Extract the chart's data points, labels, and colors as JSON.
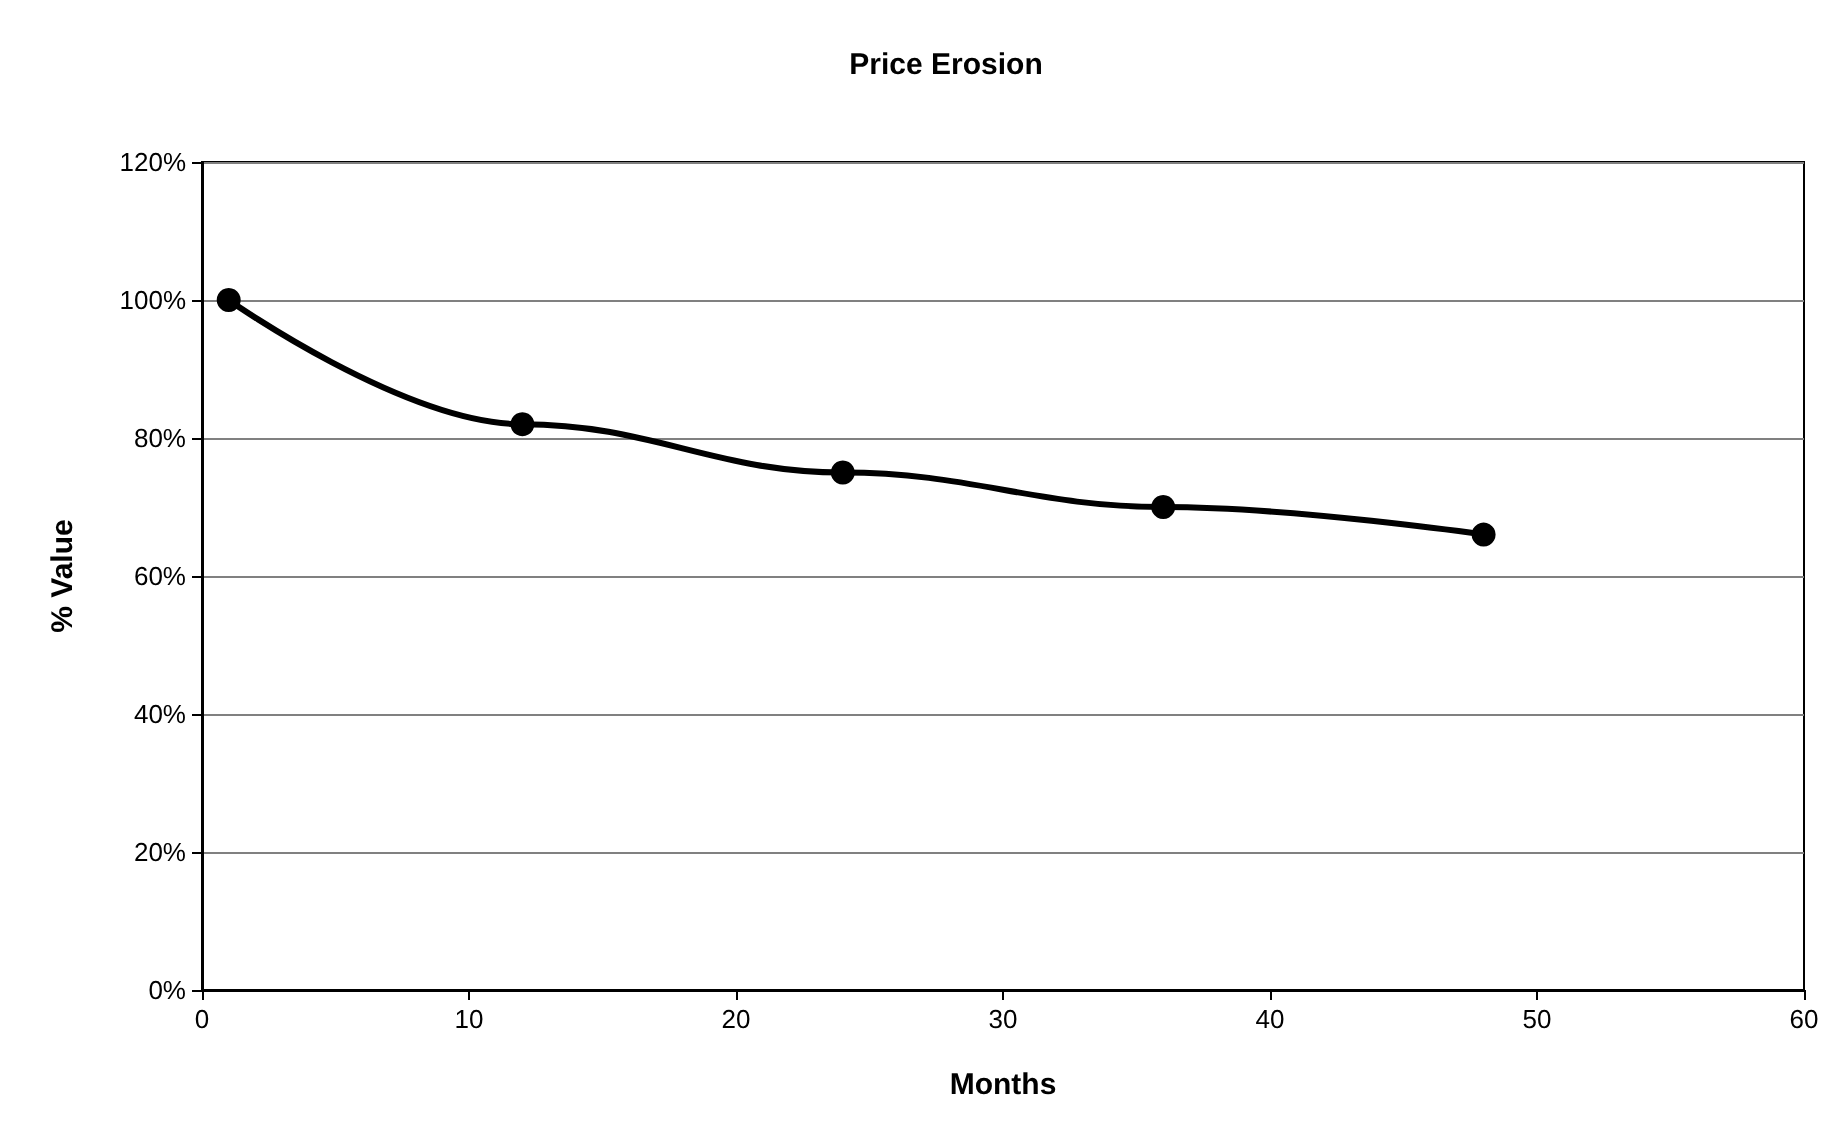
{
  "chart_data": {
    "type": "line",
    "title": "Price Erosion",
    "xlabel": "Months",
    "ylabel": "% Value",
    "x": [
      1,
      12,
      24,
      36,
      48
    ],
    "series": [
      {
        "color": "#000000",
        "values": [
          100,
          82,
          75,
          70,
          66
        ]
      }
    ],
    "xlim": [
      0,
      60
    ],
    "xticks": [
      0,
      10,
      20,
      30,
      40,
      50,
      60
    ],
    "ylim": [
      0,
      120
    ],
    "yticks": [
      {
        "value": 0,
        "label": "0%"
      },
      {
        "value": 20,
        "label": "20%"
      },
      {
        "value": 40,
        "label": "40%"
      },
      {
        "value": 60,
        "label": "60%"
      },
      {
        "value": 80,
        "label": "80%"
      },
      {
        "value": 100,
        "label": "100%"
      },
      {
        "value": 120,
        "label": "120%"
      }
    ],
    "grid": "y",
    "marker": "circle",
    "line_style": "solid"
  }
}
